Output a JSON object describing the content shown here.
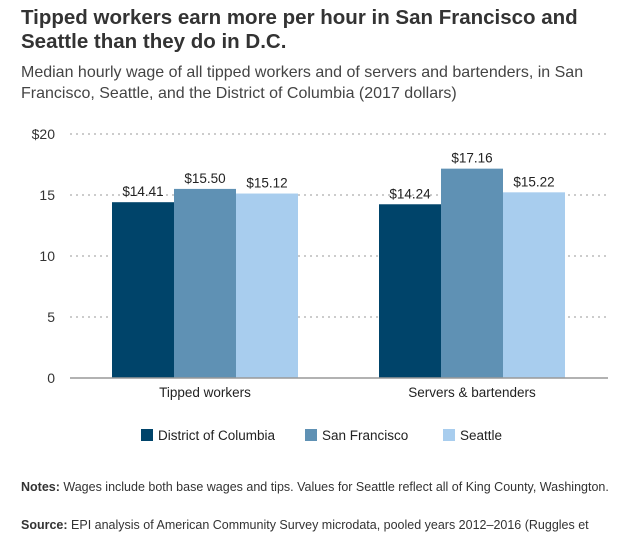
{
  "title": "Tipped workers earn more per hour in San Francisco and Seattle than they do in D.C.",
  "subtitle": "Median hourly wage of all tipped workers and of servers and bartenders, in San Francisco, Seattle, and the District of Columbia (2017 dollars)",
  "notes_label": "Notes:",
  "notes_text": " Wages include both base wages and tips. Values for Seattle reflect all of King County, Washington.",
  "source_label": "Source:",
  "source_text": " EPI analysis of American Community Survey microdata, pooled years 2012–2016 (Ruggles et",
  "chart_data": {
    "type": "bar",
    "categories": [
      "Tipped workers",
      "Servers & bartenders"
    ],
    "series": [
      {
        "name": "District of Columbia",
        "color": "#00446a",
        "values": [
          14.41,
          14.24
        ],
        "labels": [
          "$14.41",
          "$14.24"
        ]
      },
      {
        "name": "San Francisco",
        "color": "#5f91b4",
        "values": [
          15.5,
          17.16
        ],
        "labels": [
          "$15.50",
          "$17.16"
        ]
      },
      {
        "name": "Seattle",
        "color": "#a8cdee",
        "values": [
          15.12,
          15.22
        ],
        "labels": [
          "$15.12",
          "$15.22"
        ]
      }
    ],
    "yticks": [
      0,
      5,
      10,
      15,
      20
    ],
    "ytick_labels": [
      "0",
      "5",
      "10",
      "15",
      "$20"
    ],
    "ylim": [
      0,
      20
    ],
    "grid": true,
    "legend": "bottom-center",
    "xlabel": "",
    "ylabel": ""
  }
}
